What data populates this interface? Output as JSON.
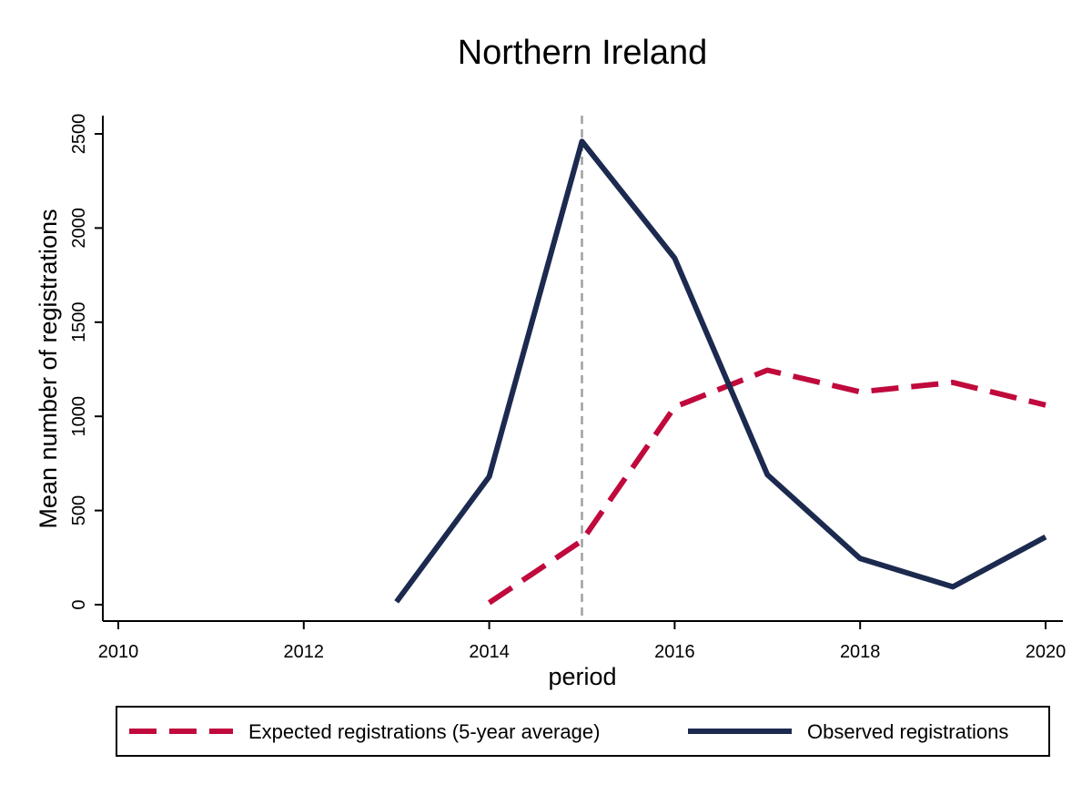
{
  "chart_data": {
    "type": "line",
    "title": "Northern Ireland",
    "xlabel": "period",
    "ylabel": "Mean number of registrations",
    "xlim": [
      2010,
      2020
    ],
    "ylim": [
      0,
      2500
    ],
    "x_ticks": [
      2010,
      2012,
      2014,
      2016,
      2018,
      2020
    ],
    "y_ticks": [
      0,
      500,
      1000,
      1500,
      2000,
      2500
    ],
    "reference_line_x": 2015,
    "grid": false,
    "legend_position": "bottom",
    "series": [
      {
        "name": "Expected registrations (5-year average)",
        "color": "#c0093c",
        "style": "dashed",
        "x": [
          2014,
          2015,
          2016,
          2017,
          2018,
          2019,
          2020
        ],
        "values": [
          10,
          340,
          1050,
          1245,
          1130,
          1180,
          1060
        ]
      },
      {
        "name": "Observed registrations",
        "color": "#1b2a4e",
        "style": "solid",
        "x": [
          2013,
          2014,
          2015,
          2016,
          2017,
          2018,
          2019,
          2020
        ],
        "values": [
          15,
          680,
          2460,
          1840,
          690,
          245,
          95,
          360
        ]
      }
    ]
  }
}
